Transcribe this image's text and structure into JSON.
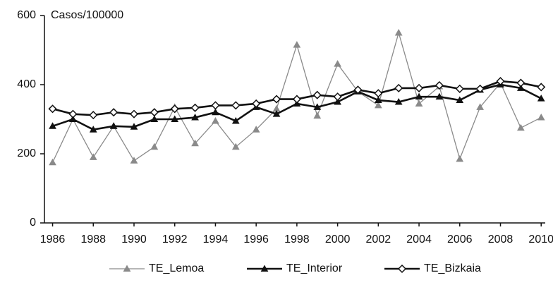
{
  "chart_data": {
    "type": "line",
    "y_label": "Casos/100000",
    "x": [
      1986,
      1987,
      1988,
      1989,
      1990,
      1991,
      1992,
      1993,
      1994,
      1995,
      1996,
      1997,
      1998,
      1999,
      2000,
      2001,
      2002,
      2003,
      2004,
      2005,
      2006,
      2007,
      2008,
      2009,
      2010
    ],
    "xlim": [
      1985.6,
      2010.2
    ],
    "xticks": [
      1986,
      1988,
      1990,
      1992,
      1994,
      1996,
      1998,
      2000,
      2002,
      2004,
      2006,
      2008,
      2010
    ],
    "ylim": [
      0,
      600
    ],
    "yticks": [
      0,
      200,
      400,
      600
    ],
    "grid": false,
    "legend": "bottom",
    "series": [
      {
        "name": "TE_Lemoa",
        "color": "#8a8a8a",
        "marker": "triangle",
        "values": [
          175,
          300,
          190,
          280,
          180,
          220,
          335,
          230,
          295,
          220,
          270,
          330,
          515,
          310,
          460,
          380,
          340,
          550,
          345,
          395,
          185,
          335,
          405,
          275,
          305
        ]
      },
      {
        "name": "TE_Interior",
        "color": "#111111",
        "marker": "triangle",
        "values": [
          280,
          300,
          270,
          280,
          278,
          300,
          300,
          305,
          320,
          295,
          335,
          315,
          345,
          335,
          350,
          380,
          355,
          350,
          365,
          365,
          355,
          385,
          400,
          390,
          360
        ]
      },
      {
        "name": "TE_Bizkaia",
        "color": "#111111",
        "marker": "diamond",
        "values": [
          330,
          315,
          312,
          320,
          315,
          320,
          330,
          333,
          340,
          340,
          345,
          358,
          358,
          370,
          365,
          385,
          375,
          390,
          390,
          398,
          388,
          388,
          410,
          405,
          393
        ]
      }
    ]
  }
}
